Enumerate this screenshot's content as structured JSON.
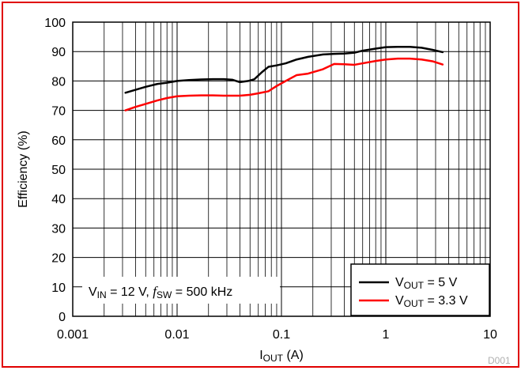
{
  "chart_data": {
    "type": "line",
    "xscale": "log",
    "xlim": [
      0.001,
      10
    ],
    "ylim": [
      0,
      100
    ],
    "grid": true,
    "x_ticks": [
      "0.001",
      "0.01",
      "0.1",
      "1",
      "10"
    ],
    "y_ticks": [
      "0",
      "10",
      "20",
      "30",
      "40",
      "50",
      "60",
      "70",
      "80",
      "90",
      "100"
    ],
    "xlabel": {
      "main": "I",
      "sub": "OUT",
      "rest": " (A)"
    },
    "ylabel": "Efficiency (%)",
    "legend_position": "bottom-right",
    "series": [
      {
        "name": {
          "main": "V",
          "sub": "OUT",
          "rest": " = 5 V"
        },
        "color": "#000000",
        "x": [
          0.0032,
          0.004,
          0.005,
          0.0065,
          0.008,
          0.01,
          0.013,
          0.017,
          0.022,
          0.028,
          0.034,
          0.04,
          0.048,
          0.055,
          0.065,
          0.075,
          0.09,
          0.11,
          0.14,
          0.18,
          0.25,
          0.32,
          0.4,
          0.5,
          0.6,
          0.8,
          1.0,
          1.3,
          1.7,
          2.2,
          2.8,
          3.5
        ],
        "y": [
          76,
          77,
          78,
          79,
          79.4,
          80,
          80.3,
          80.5,
          80.6,
          80.6,
          80.4,
          79.6,
          80,
          80.6,
          83,
          84.8,
          85.3,
          86,
          87.3,
          88.2,
          89,
          89.2,
          89.3,
          89.6,
          90.3,
          91,
          91.5,
          91.6,
          91.6,
          91.3,
          90.6,
          89.8
        ]
      },
      {
        "name": {
          "main": "V",
          "sub": "OUT",
          "rest": " = 3.3 V"
        },
        "color": "#ff0000",
        "x": [
          0.0032,
          0.004,
          0.005,
          0.0065,
          0.008,
          0.01,
          0.013,
          0.017,
          0.022,
          0.028,
          0.034,
          0.04,
          0.05,
          0.06,
          0.075,
          0.09,
          0.11,
          0.14,
          0.18,
          0.25,
          0.32,
          0.4,
          0.5,
          0.6,
          0.8,
          1.0,
          1.3,
          1.7,
          2.2,
          2.8,
          3.5
        ],
        "y": [
          70,
          71.2,
          72.2,
          73.4,
          74.2,
          74.8,
          75,
          75.1,
          75.1,
          75,
          75,
          75,
          75.3,
          75.8,
          76.5,
          78.3,
          80,
          82,
          82.5,
          84,
          85.8,
          85.7,
          85.5,
          86,
          86.8,
          87.3,
          87.6,
          87.6,
          87.3,
          86.7,
          85.6
        ]
      }
    ],
    "annotation": {
      "v": "V",
      "v_sub": "IN",
      "v_rest": " = 12 V, ",
      "f": "f",
      "f_sub": "SW",
      "f_rest": " = 500 kHz"
    },
    "figure_code": "D001"
  },
  "colors": {
    "frame": "#e00000",
    "grid": "#000000",
    "background": "#ffffff"
  }
}
